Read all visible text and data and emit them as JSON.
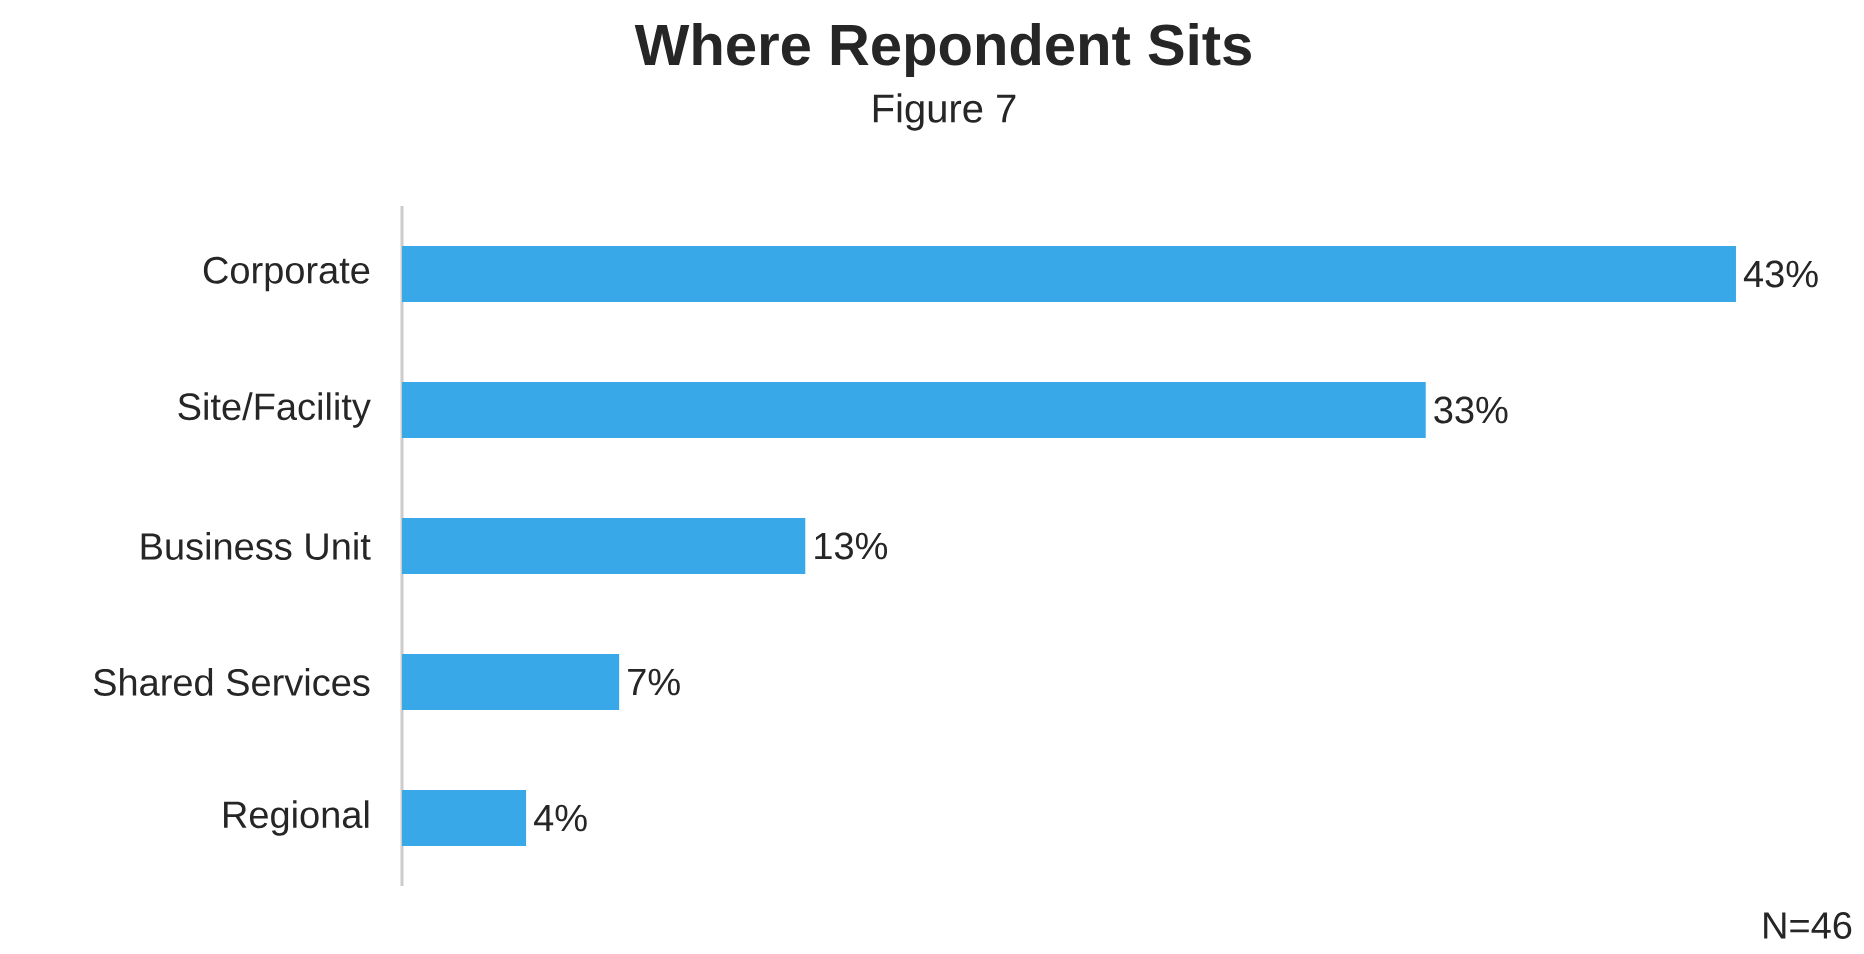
{
  "chart_data": {
    "type": "bar",
    "orientation": "horizontal",
    "title": "Where Repondent Sits",
    "subtitle": "Figure 7",
    "categories": [
      "Corporate",
      "Site/Facility",
      "Business Unit",
      "Shared Services",
      "Regional"
    ],
    "values": [
      43,
      33,
      13,
      7,
      4
    ],
    "value_labels": [
      "43%",
      "33%",
      "13%",
      "7%",
      "4%"
    ],
    "color": "#38a8e8",
    "annotations": [
      "N=46"
    ]
  }
}
